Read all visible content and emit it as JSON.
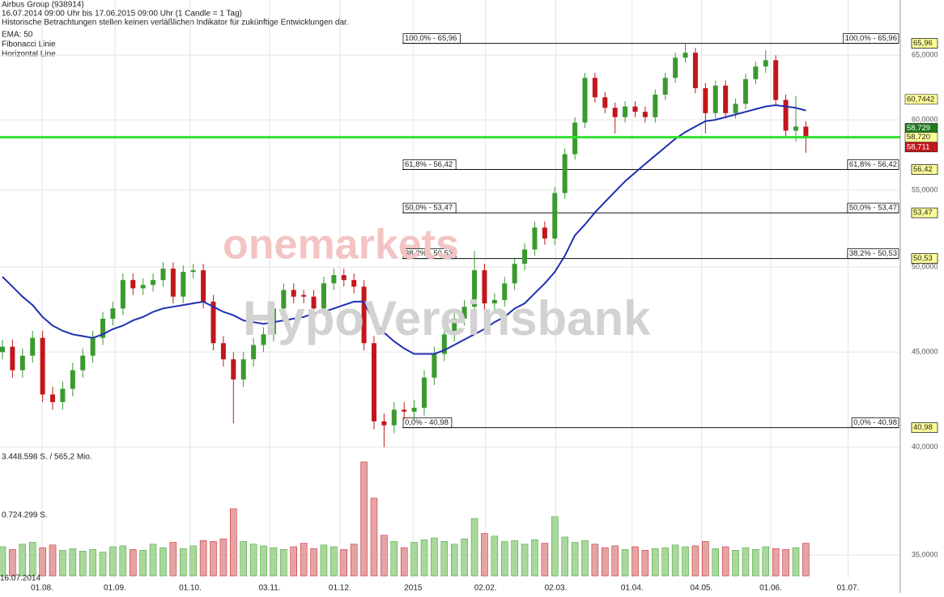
{
  "chart_data": {
    "type": "candlestick",
    "title": "Airbus Group (938914)",
    "subtitle": "16.07.2014 09:00 Uhr bis 17.06.2015 09:00 Uhr (1 Candle = 1 Tag)",
    "disclaimer": "Historische Betrachtungen stellen keinen verläßlichen Indikator für zukünftige Entwicklungen dar.",
    "legend": [
      "EMA: 50",
      "Fibonacci Linie",
      "Horizontal Line"
    ],
    "watermark": [
      "onemarkets",
      "HypoVereinsbank"
    ],
    "start_label": "16.07.2014",
    "log_scale": true,
    "grid": true,
    "ylim": [
      34.0,
      69.6
    ],
    "yticks": [
      {
        "value": 65,
        "label": "65,0000"
      },
      {
        "value": 60,
        "label": "60,0000"
      },
      {
        "value": 55,
        "label": "55,0000"
      },
      {
        "value": 50,
        "label": "50,0000"
      },
      {
        "value": 45,
        "label": "45,0000"
      },
      {
        "value": 40,
        "label": "40,0000"
      },
      {
        "value": 35,
        "label": "35,0000"
      }
    ],
    "xlim": [
      0,
      89.4
    ],
    "xticks": [
      {
        "value": 3.95,
        "label": "01.08."
      },
      {
        "value": 11.2,
        "label": "01.09."
      },
      {
        "value": 18.7,
        "label": "01.10."
      },
      {
        "value": 26.6,
        "label": "03.11."
      },
      {
        "value": 33.6,
        "label": "01.12."
      },
      {
        "value": 40.9,
        "label": "2015"
      },
      {
        "value": 48.1,
        "label": "02.02."
      },
      {
        "value": 55.1,
        "label": "02.03."
      },
      {
        "value": 62.7,
        "label": "01.04."
      },
      {
        "value": 69.6,
        "label": "04.05."
      },
      {
        "value": 76.5,
        "label": "01.06."
      },
      {
        "value": 84.2,
        "label": "01.07."
      }
    ],
    "up_color": "#3a9a2e",
    "down_color": "#c3161c",
    "candles": [
      [
        45.0,
        45.7,
        44.6,
        45.3
      ],
      [
        45.3,
        45.7,
        43.6,
        44.0
      ],
      [
        44.0,
        45.2,
        43.6,
        44.8
      ],
      [
        44.8,
        46.2,
        44.4,
        45.8
      ],
      [
        45.8,
        46.2,
        42.3,
        42.7
      ],
      [
        42.7,
        43.1,
        41.9,
        42.3
      ],
      [
        42.3,
        43.4,
        41.9,
        43.0
      ],
      [
        43.0,
        44.4,
        42.6,
        44.0
      ],
      [
        44.0,
        45.2,
        43.6,
        44.8
      ],
      [
        44.8,
        46.2,
        44.4,
        45.8
      ],
      [
        45.8,
        47.3,
        45.4,
        46.9
      ],
      [
        46.9,
        47.9,
        46.5,
        47.5
      ],
      [
        47.5,
        49.6,
        47.1,
        49.2
      ],
      [
        49.2,
        49.6,
        48.3,
        48.7
      ],
      [
        48.7,
        49.3,
        48.3,
        48.9
      ],
      [
        48.9,
        49.6,
        48.5,
        49.2
      ],
      [
        49.2,
        50.3,
        48.8,
        49.9
      ],
      [
        49.9,
        50.3,
        47.8,
        48.2
      ],
      [
        48.2,
        50.1,
        47.8,
        49.7
      ],
      [
        49.7,
        50.2,
        49.3,
        49.8
      ],
      [
        49.8,
        50.2,
        47.5,
        47.9
      ],
      [
        47.9,
        48.3,
        45.1,
        45.5
      ],
      [
        45.5,
        45.9,
        44.2,
        44.6
      ],
      [
        44.6,
        45.0,
        41.2,
        43.5
      ],
      [
        43.5,
        45.0,
        43.1,
        44.6
      ],
      [
        44.6,
        45.8,
        44.2,
        45.4
      ],
      [
        45.4,
        46.4,
        45.0,
        46.0
      ],
      [
        46.0,
        47.9,
        45.6,
        47.5
      ],
      [
        47.5,
        49.0,
        47.1,
        48.6
      ],
      [
        48.6,
        49.0,
        47.8,
        48.2
      ],
      [
        48.3,
        48.6,
        47.8,
        48.2
      ],
      [
        48.2,
        48.6,
        47.1,
        47.5
      ],
      [
        47.5,
        49.4,
        47.1,
        49.0
      ],
      [
        49.0,
        49.9,
        48.6,
        49.5
      ],
      [
        49.5,
        49.9,
        48.8,
        49.2
      ],
      [
        49.2,
        49.6,
        48.4,
        48.8
      ],
      [
        48.8,
        49.2,
        45.1,
        45.5
      ],
      [
        45.5,
        45.9,
        40.9,
        41.3
      ],
      [
        41.3,
        41.7,
        40.0,
        41.1
      ],
      [
        41.1,
        42.3,
        40.7,
        41.9
      ],
      [
        41.9,
        42.3,
        41.4,
        41.8
      ],
      [
        41.8,
        42.4,
        41.4,
        42.0
      ],
      [
        42.0,
        44.0,
        41.6,
        43.6
      ],
      [
        43.6,
        45.3,
        43.2,
        44.9
      ],
      [
        44.9,
        46.4,
        44.5,
        46.0
      ],
      [
        46.0,
        47.3,
        45.6,
        46.9
      ],
      [
        46.9,
        48.0,
        46.5,
        47.6
      ],
      [
        47.6,
        51.0,
        47.2,
        49.8
      ],
      [
        49.8,
        50.2,
        47.4,
        47.8
      ],
      [
        47.8,
        48.4,
        47.4,
        48.0
      ],
      [
        48.0,
        49.4,
        47.6,
        49.0
      ],
      [
        49.0,
        50.6,
        48.6,
        50.2
      ],
      [
        50.2,
        51.5,
        49.8,
        51.1
      ],
      [
        51.1,
        52.9,
        50.7,
        52.5
      ],
      [
        52.5,
        52.9,
        51.4,
        51.8
      ],
      [
        51.8,
        55.2,
        51.4,
        54.8
      ],
      [
        54.8,
        57.9,
        54.4,
        57.5
      ],
      [
        57.5,
        60.2,
        57.1,
        59.8
      ],
      [
        59.8,
        63.6,
        59.4,
        63.2
      ],
      [
        63.2,
        63.6,
        61.3,
        61.7
      ],
      [
        61.7,
        62.1,
        60.5,
        60.9
      ],
      [
        60.9,
        61.3,
        59.0,
        60.2
      ],
      [
        60.2,
        61.4,
        59.8,
        61.0
      ],
      [
        61.0,
        61.4,
        60.2,
        60.6
      ],
      [
        60.6,
        61.0,
        59.8,
        60.2
      ],
      [
        60.2,
        62.3,
        59.8,
        61.9
      ],
      [
        61.9,
        63.6,
        61.5,
        63.2
      ],
      [
        63.2,
        65.2,
        62.8,
        64.8
      ],
      [
        64.8,
        65.96,
        64.4,
        65.2
      ],
      [
        65.2,
        65.6,
        62.0,
        62.4
      ],
      [
        62.4,
        62.8,
        59.0,
        60.5
      ],
      [
        60.5,
        63.0,
        60.1,
        62.6
      ],
      [
        62.6,
        63.0,
        60.1,
        60.5
      ],
      [
        60.5,
        61.6,
        60.1,
        61.2
      ],
      [
        61.2,
        63.5,
        60.8,
        63.1
      ],
      [
        63.1,
        64.5,
        62.7,
        64.1
      ],
      [
        64.1,
        65.4,
        63.6,
        64.6
      ],
      [
        64.6,
        65.0,
        61.1,
        61.5
      ],
      [
        61.5,
        61.9,
        58.8,
        59.2
      ],
      [
        59.2,
        61.8,
        58.4,
        59.5
      ],
      [
        59.5,
        59.9,
        57.6,
        58.7
      ]
    ],
    "ema": {
      "name": "EMA: 50",
      "color": "#1f2fb0",
      "values": [
        49.4,
        48.8,
        48.2,
        47.7,
        47.0,
        46.5,
        46.2,
        46.0,
        45.9,
        45.8,
        46.0,
        46.3,
        46.5,
        46.8,
        47.0,
        47.3,
        47.5,
        47.6,
        47.7,
        47.8,
        47.9,
        47.6,
        47.3,
        47.1,
        46.8,
        46.7,
        46.6,
        46.7,
        46.8,
        46.9,
        47.0,
        47.2,
        47.3,
        47.5,
        47.7,
        47.9,
        47.9,
        46.7,
        46.1,
        45.6,
        45.2,
        44.9,
        44.9,
        44.9,
        45.1,
        45.4,
        45.7,
        46.0,
        46.3,
        46.7,
        47.0,
        47.5,
        47.8,
        48.4,
        49.0,
        49.7,
        50.7,
        52.0,
        52.7,
        53.5,
        54.2,
        54.9,
        55.6,
        56.2,
        56.8,
        57.4,
        58.0,
        58.6,
        59.1,
        59.5,
        59.9,
        60.0,
        60.2,
        60.4,
        60.6,
        60.8,
        61.0,
        61.1,
        61.0,
        60.9,
        60.7
      ]
    },
    "volume": {
      "labels": [
        "3.448.598 S. / 565,2 Mio.",
        "0.724.299 S."
      ],
      "vlim": [
        0,
        13.45
      ],
      "up_color": "#a8d89a",
      "down_color": "#e6a3a3",
      "values": [
        3.3,
        3.0,
        3.6,
        3.8,
        3.2,
        3.5,
        2.9,
        3.1,
        2.8,
        3.0,
        2.7,
        3.3,
        3.4,
        3.0,
        2.9,
        3.6,
        3.2,
        3.8,
        3.1,
        3.4,
        4.0,
        3.9,
        4.2,
        7.6,
        3.9,
        3.6,
        3.4,
        3.2,
        3.0,
        3.3,
        3.7,
        3.1,
        3.5,
        3.3,
        3.0,
        3.6,
        12.9,
        8.8,
        4.6,
        3.9,
        3.2,
        3.8,
        4.1,
        4.3,
        3.9,
        3.6,
        4.2,
        6.5,
        4.8,
        4.5,
        3.9,
        4.0,
        3.6,
        4.1,
        3.7,
        6.7,
        4.4,
        3.8,
        4.0,
        3.6,
        3.2,
        3.4,
        3.0,
        3.3,
        2.9,
        3.1,
        3.2,
        3.5,
        3.3,
        3.4,
        3.9,
        3.1,
        3.3,
        2.9,
        3.2,
        3.0,
        3.3,
        3.1,
        3.0,
        3.2,
        3.7
      ]
    },
    "fibonacci": [
      {
        "value": 65.96,
        "label": "100,0% - 65,96",
        "axis_label": "65,96"
      },
      {
        "value": 56.42,
        "label": "61,8% - 56,42",
        "axis_label": "56,42"
      },
      {
        "value": 53.47,
        "label": "50,0% - 53,47",
        "axis_label": "53,47"
      },
      {
        "value": 50.53,
        "label": "38,2% - 50,53",
        "axis_label": "50,53"
      },
      {
        "value": 40.98,
        "label": "0,0% - 40,98",
        "axis_label": "40,98"
      }
    ],
    "horizontal_line": {
      "value": 58.72,
      "label": "58,720",
      "color": "#2fe02f"
    },
    "price_markers": [
      {
        "value": 60.7442,
        "label": "60,7442",
        "color": "#ffff99"
      },
      {
        "value": 58.729,
        "label": "58,729",
        "color": "#1e7a1e"
      },
      {
        "value": 58.711,
        "label": "58,711",
        "color": "#c3161c"
      }
    ]
  }
}
